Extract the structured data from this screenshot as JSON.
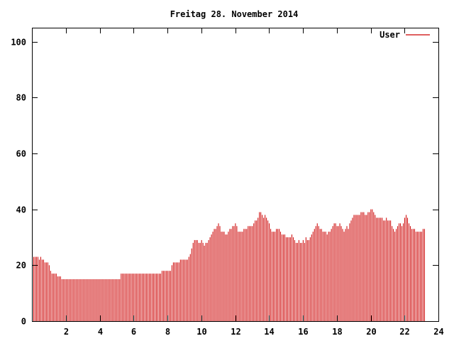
{
  "chart_data": {
    "type": "bar",
    "title": "Freitag 28. November 2014",
    "xlabel": "",
    "ylabel": "",
    "xlim": [
      0,
      24
    ],
    "ylim": [
      0,
      105
    ],
    "xticks": [
      2,
      4,
      6,
      8,
      10,
      12,
      14,
      16,
      18,
      20,
      22,
      24
    ],
    "yticks": [
      0,
      20,
      40,
      60,
      80,
      100
    ],
    "grid": false,
    "legend_position": "top-right",
    "series": [
      {
        "name": "User",
        "color": "#cc0000",
        "x_start": 0,
        "x_step": 0.0833,
        "values": [
          23,
          23,
          23,
          23,
          23,
          22,
          23,
          22,
          22,
          21,
          21,
          21,
          20,
          18,
          17,
          17,
          17,
          17,
          16,
          16,
          16,
          15,
          15,
          15,
          15,
          15,
          15,
          15,
          15,
          15,
          15,
          15,
          15,
          15,
          15,
          15,
          15,
          15,
          15,
          15,
          15,
          15,
          15,
          15,
          15,
          15,
          15,
          15,
          15,
          15,
          15,
          15,
          15,
          15,
          15,
          15,
          15,
          15,
          15,
          15,
          15,
          15,
          15,
          17,
          17,
          17,
          17,
          17,
          17,
          17,
          17,
          17,
          17,
          17,
          17,
          17,
          17,
          17,
          17,
          17,
          17,
          17,
          17,
          17,
          17,
          17,
          17,
          17,
          17,
          17,
          17,
          17,
          18,
          18,
          18,
          18,
          18,
          18,
          18,
          20,
          21,
          21,
          21,
          21,
          21,
          22,
          22,
          22,
          22,
          22,
          22,
          23,
          24,
          26,
          28,
          29,
          29,
          29,
          28,
          28,
          29,
          28,
          27,
          28,
          28,
          29,
          30,
          31,
          32,
          33,
          33,
          34,
          35,
          34,
          32,
          32,
          32,
          31,
          31,
          32,
          33,
          33,
          34,
          34,
          35,
          34,
          32,
          32,
          32,
          32,
          33,
          33,
          33,
          34,
          34,
          34,
          34,
          35,
          36,
          36,
          37,
          39,
          39,
          38,
          37,
          38,
          37,
          36,
          35,
          33,
          32,
          32,
          32,
          33,
          33,
          33,
          32,
          31,
          31,
          31,
          30,
          30,
          30,
          30,
          31,
          30,
          29,
          28,
          28,
          29,
          28,
          28,
          29,
          28,
          30,
          29,
          29,
          30,
          31,
          32,
          33,
          34,
          35,
          34,
          33,
          33,
          32,
          32,
          32,
          31,
          32,
          32,
          33,
          34,
          35,
          35,
          34,
          34,
          35,
          34,
          33,
          32,
          33,
          34,
          33,
          35,
          36,
          37,
          38,
          38,
          38,
          38,
          38,
          39,
          39,
          39,
          38,
          38,
          39,
          39,
          40,
          40,
          39,
          38,
          37,
          37,
          37,
          37,
          37,
          36,
          36,
          37,
          36,
          36,
          36,
          34,
          33,
          32,
          33,
          34,
          35,
          35,
          34,
          35,
          37,
          38,
          37,
          35,
          34,
          33,
          33,
          33,
          32,
          32,
          32,
          32,
          32,
          33,
          33
        ]
      }
    ]
  }
}
